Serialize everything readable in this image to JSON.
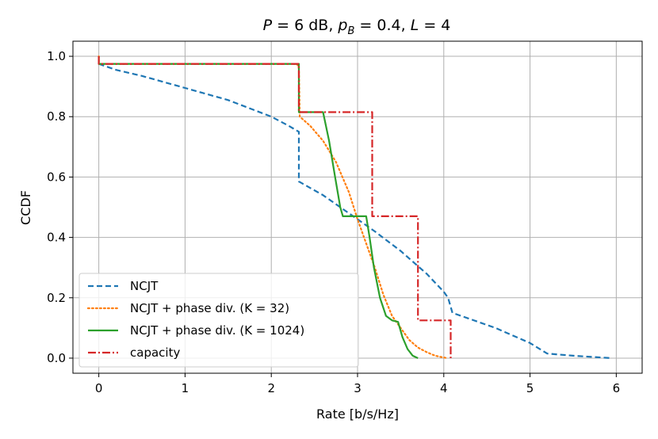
{
  "chart_data": {
    "type": "line",
    "title": {
      "P": "P",
      "eq1": " = 6 dB, ",
      "p": "p",
      "sub": "B",
      "eq2": " = 0.4, ",
      "L": "L",
      "eq3": " = 4"
    },
    "xlabel": "Rate [b/s/Hz]",
    "ylabel": "CCDF",
    "xlim": [
      -0.3,
      6.3
    ],
    "ylim": [
      -0.05,
      1.05
    ],
    "xticks": [
      0,
      1,
      2,
      3,
      4,
      5,
      6
    ],
    "yticks": [
      0.0,
      0.2,
      0.4,
      0.6,
      0.8,
      1.0
    ],
    "xtick_labels": [
      "0",
      "1",
      "2",
      "3",
      "4",
      "5",
      "6"
    ],
    "ytick_labels": [
      "0.0",
      "0.2",
      "0.4",
      "0.6",
      "0.8",
      "1.0"
    ],
    "grid": true,
    "legend_position": "bottom-left",
    "series": [
      {
        "name": "NCJT",
        "color": "#1f77b4",
        "dash": "dashed",
        "x": [
          0,
          0.2,
          0.5,
          1.0,
          1.5,
          2.0,
          2.2,
          2.32,
          2.32,
          2.6,
          2.8,
          3.0,
          3.2,
          3.5,
          3.8,
          4.0,
          4.05,
          4.1,
          4.3,
          4.6,
          5.0,
          5.2,
          5.5,
          5.95
        ],
        "y": [
          0.975,
          0.955,
          0.935,
          0.895,
          0.855,
          0.8,
          0.77,
          0.75,
          0.585,
          0.54,
          0.5,
          0.46,
          0.42,
          0.355,
          0.28,
          0.22,
          0.2,
          0.15,
          0.13,
          0.1,
          0.05,
          0.015,
          0.008,
          0.0
        ]
      },
      {
        "name": "NCJT + phase div. (K = 32)",
        "color": "#ff7f0e",
        "dash": "dotted",
        "x": [
          0,
          0.0,
          2.3,
          2.32,
          2.33,
          2.45,
          2.6,
          2.75,
          2.9,
          3.0,
          3.1,
          3.2,
          3.3,
          3.4,
          3.5,
          3.6,
          3.7,
          3.8,
          3.9,
          4.0,
          4.05
        ],
        "y": [
          1.0,
          0.975,
          0.975,
          0.96,
          0.8,
          0.77,
          0.72,
          0.65,
          0.55,
          0.46,
          0.38,
          0.3,
          0.21,
          0.14,
          0.1,
          0.06,
          0.035,
          0.02,
          0.008,
          0.002,
          0.0
        ]
      },
      {
        "name": "NCJT + phase div. (K = 1024)",
        "color": "#2ca02c",
        "dash": "solid",
        "x": [
          0,
          0.0,
          2.32,
          2.32,
          2.6,
          2.67,
          2.74,
          2.8,
          2.83,
          3.1,
          3.14,
          3.19,
          3.26,
          3.33,
          3.4,
          3.47,
          3.52,
          3.58,
          3.64,
          3.7
        ],
        "y": [
          1.0,
          0.975,
          0.975,
          0.815,
          0.815,
          0.72,
          0.6,
          0.5,
          0.47,
          0.47,
          0.4,
          0.3,
          0.2,
          0.14,
          0.125,
          0.12,
          0.07,
          0.03,
          0.008,
          0.0
        ]
      },
      {
        "name": "capacity",
        "color": "#d62728",
        "dash": "dashdot",
        "x": [
          0,
          0.0,
          2.32,
          2.32,
          3.17,
          3.17,
          3.7,
          3.7,
          4.08,
          4.08
        ],
        "y": [
          1.0,
          0.975,
          0.975,
          0.815,
          0.815,
          0.47,
          0.47,
          0.125,
          0.125,
          0.0
        ]
      }
    ]
  }
}
